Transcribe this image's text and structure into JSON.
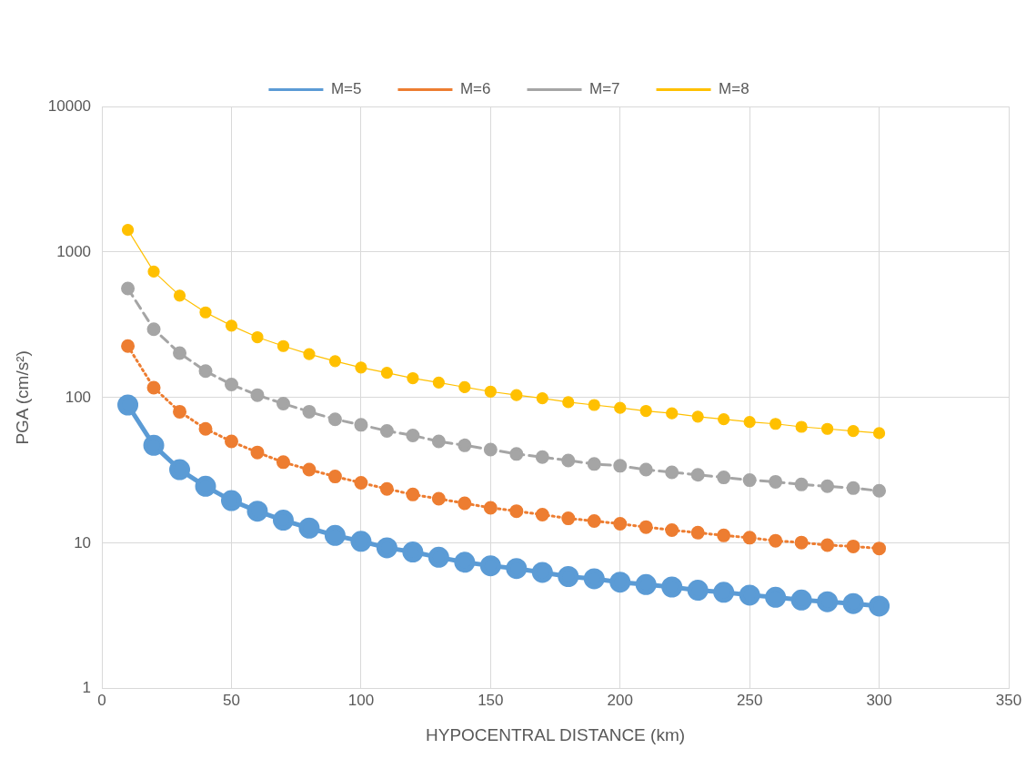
{
  "chart_data": {
    "type": "line",
    "xlabel": "HYPOCENTRAL DISTANCE (km)",
    "ylabel": "PGA (cm/s²)",
    "log": "y",
    "grid": true,
    "legend": "top",
    "marker": "circle",
    "x": [
      10,
      20,
      30,
      40,
      50,
      60,
      70,
      80,
      90,
      100,
      110,
      120,
      130,
      140,
      150,
      160,
      170,
      180,
      190,
      200,
      210,
      220,
      230,
      240,
      250,
      260,
      270,
      280,
      290,
      300
    ],
    "xlim": [
      0,
      350
    ],
    "xticks": [
      0,
      50,
      100,
      150,
      200,
      250,
      300,
      350
    ],
    "ylim": [
      1,
      10000
    ],
    "yticks": [
      1,
      10,
      100,
      1000,
      10000
    ],
    "series": [
      {
        "name": "M=5",
        "color": "#5b9bd5",
        "line_style": "solid",
        "values": [
          89,
          47,
          32,
          24.6,
          19.6,
          16.6,
          14.4,
          12.7,
          11.3,
          10.3,
          9.3,
          8.7,
          8.0,
          7.4,
          7.0,
          6.7,
          6.3,
          5.9,
          5.7,
          5.4,
          5.2,
          5.0,
          4.75,
          4.6,
          4.4,
          4.25,
          4.07,
          3.96,
          3.85,
          3.7
        ]
      },
      {
        "name": "M=6",
        "color": "#ed7d31",
        "line_style": "dotted",
        "values": [
          226,
          117,
          80,
          61,
          50,
          42,
          36,
          32,
          28.7,
          26,
          23.6,
          21.6,
          20.2,
          18.8,
          17.5,
          16.6,
          15.7,
          14.8,
          14.2,
          13.6,
          12.9,
          12.3,
          11.8,
          11.3,
          10.9,
          10.4,
          10.1,
          9.7,
          9.5,
          9.2
        ]
      },
      {
        "name": "M=7",
        "color": "#a5a5a5",
        "line_style": "dashed",
        "values": [
          562,
          295,
          202,
          152,
          123,
          104,
          91,
          80,
          71,
          65,
          59,
          55,
          50,
          47,
          44,
          41,
          39,
          37,
          35,
          34,
          32,
          30.7,
          29.5,
          28.3,
          27.1,
          26.4,
          25.3,
          24.6,
          23.9,
          22.9
        ]
      },
      {
        "name": "M=8",
        "color": "#ffc000",
        "line_style": "solid",
        "values": [
          1420,
          734,
          502,
          385,
          312,
          260,
          226,
          199,
          178,
          161,
          148,
          136,
          127,
          118,
          110,
          104,
          99,
          93,
          89,
          85,
          81,
          78,
          74,
          71,
          68,
          66,
          63,
          61,
          59,
          57
        ]
      }
    ]
  }
}
